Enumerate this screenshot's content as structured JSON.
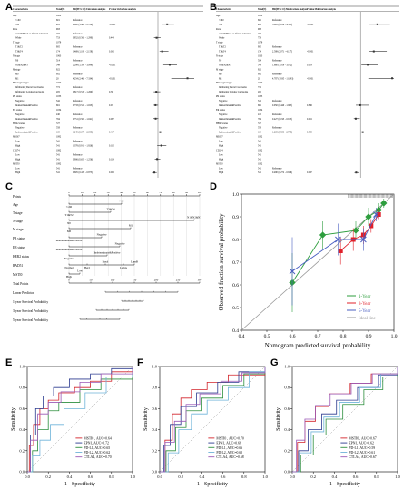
{
  "panels": {
    "A": "A",
    "B": "B",
    "C": "C",
    "D": "D",
    "E": "E",
    "F": "F",
    "G": "G"
  },
  "forest_uni": {
    "headers": [
      "Characteristics",
      "Total(N)",
      "HR(95% CI) Univariate analysis",
      "P value Univariate analysis"
    ],
    "rows": [
      [
        "Age",
        "1082",
        "",
        ""
      ],
      [
        "<=60",
        "601",
        "Reference",
        ""
      ],
      [
        ">60",
        "481",
        "2.020 (1.465 - 2.784)",
        "<0.001"
      ],
      [
        "Race",
        "993",
        "",
        ""
      ],
      [
        "Asian&Black or African American",
        "184",
        "Reference",
        ""
      ],
      [
        "White",
        "753",
        "0.852 (0.563 - 1.290)",
        "0.449"
      ],
      [
        "T stage",
        "1079",
        "",
        ""
      ],
      [
        "T1&T2",
        "905",
        "Reference",
        ""
      ],
      [
        "T3&T4",
        "174",
        "1.469 (1.181 - 2.158)",
        "0.012"
      ],
      [
        "N stage",
        "1063",
        "",
        ""
      ],
      [
        "N0",
        "514",
        "Reference",
        ""
      ],
      [
        "N1&N2&N3",
        "549",
        "2.299 (1.591 - 3.099)",
        "<0.001"
      ],
      [
        "M stage",
        "922",
        "",
        ""
      ],
      [
        "M0",
        "902",
        "Reference",
        ""
      ],
      [
        "M1",
        "20",
        "4.254 (2.468 - 7.334)",
        "<0.001"
      ],
      [
        "Histological type",
        "1077",
        "",
        ""
      ],
      [
        "Infiltrating Ductal Carcinoma",
        "772",
        "Reference",
        ""
      ],
      [
        "Infiltrating Lobular Carcinoma",
        "205",
        "0.817 (0.530 - 1.260)",
        "0.36"
      ],
      [
        "PR status",
        "1033",
        "",
        ""
      ],
      [
        "Negative",
        "342",
        "Reference",
        ""
      ],
      [
        "Indeterminate&Positive",
        "691",
        "0.733 (0.525 - 1.023)",
        "0.07"
      ],
      [
        "ER status",
        "1034",
        "",
        ""
      ],
      [
        "Negative",
        "240",
        "Reference",
        ""
      ],
      [
        "Indeterminate&Positive",
        "794",
        "0.751 (0.503 - 1.041)",
        "0.087"
      ],
      [
        "HER2 status",
        "727",
        "",
        ""
      ],
      [
        "Negative",
        "558",
        "Reference",
        ""
      ],
      [
        "Indeterminate&Positive",
        "169",
        "1.249 (0.672 - 2.088)",
        "0.467"
      ],
      [
        "MKI67",
        "1082",
        "",
        ""
      ],
      [
        "Low",
        "541",
        "Reference",
        ""
      ],
      [
        "High",
        "541",
        "1.378 (0.919 - 1.926)",
        "0.115"
      ],
      [
        "CD274",
        "1082",
        "",
        ""
      ],
      [
        "Low",
        "541",
        "Reference",
        ""
      ],
      [
        "High",
        "541",
        "0.906 (0.654 - 1.256)",
        "0.119"
      ],
      [
        "MSTI0",
        "1082",
        "",
        ""
      ],
      [
        "Low",
        "541",
        "Reference",
        ""
      ],
      [
        "High",
        "541",
        "0.605 (0.439 - 0.875)",
        "0.006"
      ]
    ],
    "axis_ticks": [
      "0",
      "1",
      "2",
      "3",
      "4",
      "5"
    ],
    "ci": [
      null,
      null,
      [
        1.465,
        2.784,
        2.02
      ],
      null,
      null,
      [
        0.563,
        1.29,
        0.852
      ],
      null,
      null,
      [
        1.181,
        2.158,
        1.469
      ],
      null,
      null,
      [
        1.591,
        3.099,
        2.299
      ],
      null,
      null,
      [
        2.468,
        7.334,
        4.254
      ],
      null,
      null,
      [
        0.53,
        1.26,
        0.817
      ],
      null,
      null,
      [
        0.525,
        1.023,
        0.733
      ],
      null,
      null,
      [
        0.503,
        1.041,
        0.751
      ],
      null,
      null,
      [
        0.672,
        2.088,
        1.249
      ],
      null,
      null,
      [
        0.919,
        1.926,
        1.378
      ],
      null,
      null,
      [
        0.654,
        1.256,
        0.906
      ],
      null,
      null,
      [
        0.439,
        0.875,
        0.605
      ]
    ]
  },
  "forest_multi": {
    "headers": [
      "Characteristics",
      "Total(N)",
      "HR(95% CI) Multivariate analysis",
      "P value Multivariate analysis"
    ],
    "rows": [
      [
        "Age",
        "1082",
        "",
        ""
      ],
      [
        "<=60",
        "601",
        "Reference",
        ""
      ],
      [
        ">60",
        "481",
        "3.022 (2.036 - 4.523)",
        "<0.001"
      ],
      [
        "Race",
        "993",
        "",
        ""
      ],
      [
        "Asian&Black or African American",
        "184",
        "",
        ""
      ],
      [
        "White",
        "753",
        "",
        ""
      ],
      [
        "T stage",
        "1079",
        "",
        ""
      ],
      [
        "T1&T2",
        "905",
        "Reference",
        ""
      ],
      [
        "T3&T4",
        "174",
        "2.589 (2.071 - 4.137)",
        "<0.001"
      ],
      [
        "N stage",
        "1063",
        "",
        ""
      ],
      [
        "N0",
        "514",
        "Reference",
        ""
      ],
      [
        "N1&N2&N3",
        "549",
        "1.860 (1.109 - 3.072)",
        "0.019"
      ],
      [
        "M stage",
        "922",
        "",
        ""
      ],
      [
        "M0",
        "902",
        "Reference",
        ""
      ],
      [
        "M1",
        "20",
        "4.787 (1.935 - 11.893)",
        "<0.001"
      ],
      [
        "Histological type",
        "1077",
        "",
        ""
      ],
      [
        "Infiltrating Ductal Carcinoma",
        "772",
        "",
        ""
      ],
      [
        "Infiltrating Lobular Carcinoma",
        "205",
        "",
        ""
      ],
      [
        "PR status",
        "1033",
        "",
        ""
      ],
      [
        "Negative",
        "342",
        "Reference",
        ""
      ],
      [
        "Indeterminate&Positive",
        "691",
        "0.950 (0.440 - 1.965)",
        "0.896"
      ],
      [
        "ER status",
        "1034",
        "",
        ""
      ],
      [
        "Negative",
        "240",
        "Reference",
        ""
      ],
      [
        "Indeterminate&Positive",
        "794",
        "0.427 (0.193 - 0.913)",
        "0.031"
      ],
      [
        "HER2 status",
        "727",
        "",
        ""
      ],
      [
        "Negative",
        "558",
        "Reference",
        ""
      ],
      [
        "Indeterminate&Positive",
        "169",
        "1.265 (0.583 - 2.755)",
        "0.528"
      ],
      [
        "MKI67",
        "1082",
        "",
        ""
      ],
      [
        "Low",
        "541",
        "",
        ""
      ],
      [
        "High",
        "541",
        "",
        ""
      ],
      [
        "CD274",
        "1082",
        "",
        ""
      ],
      [
        "Low",
        "541",
        "",
        ""
      ],
      [
        "High",
        "541",
        "",
        ""
      ],
      [
        "MSTI0",
        "1082",
        "",
        ""
      ],
      [
        "Low",
        "541",
        "Reference",
        ""
      ],
      [
        "High",
        "541",
        "0.480 (0.272 - 0.846)",
        "0.047"
      ]
    ],
    "axis_ticks": [
      "0",
      "2",
      "4"
    ],
    "ci": [
      null,
      null,
      [
        2.036,
        4.523,
        3.022
      ],
      null,
      null,
      null,
      null,
      null,
      [
        2.071,
        4.137,
        2.589
      ],
      null,
      null,
      [
        1.109,
        3.072,
        1.86
      ],
      null,
      null,
      [
        1.935,
        11.893,
        4.787
      ],
      null,
      null,
      null,
      null,
      null,
      [
        0.44,
        1.965,
        0.95
      ],
      null,
      null,
      [
        0.193,
        0.913,
        0.427
      ],
      null,
      null,
      [
        0.583,
        2.755,
        1.265
      ],
      null,
      null,
      null,
      null,
      null,
      null,
      null,
      null,
      [
        0.272,
        0.846,
        0.48
      ]
    ]
  },
  "nomogram": {
    "rows": [
      "Points",
      "Age",
      "T stage",
      "N stage",
      "M stage",
      "PR status",
      "ER status",
      "HER2 status",
      "RAD51",
      "MSTI0",
      "Total Points",
      "Linear Predictor",
      "1-year Survival Probability",
      "3-year Survival Probability",
      "5-year Survival Probability"
    ],
    "points_ticks": [
      "0",
      "10",
      "20",
      "30",
      "40",
      "50",
      "60",
      "70",
      "80",
      "90",
      "100"
    ],
    "total_ticks": [
      "0",
      "50",
      "100",
      "150",
      "200",
      "250",
      "300"
    ],
    "annotations": {
      "age": ">60",
      "age2": "<=60",
      "t1": "T3&T4",
      "t2": "T1&T2",
      "n1": "N1&N2&N3",
      "n2": "N0",
      "m1": "M1",
      "m2": "M0",
      "pr1": "Negative",
      "pr2": "Indeterminate&Positive",
      "er1": "Negative",
      "er2": "Indeterminate&Positive",
      "her1": "Indeterminate&Positive",
      "her2": "Negative",
      "rad_a": "Basal",
      "rad_b": "Normal",
      "rad_c": "LumB",
      "rad_d": "LumA",
      "rad_e": "Her2",
      "ms1": "Low",
      "ms2": "High"
    }
  },
  "calibration": {
    "xlabel": "Nomogram predicted survival probability",
    "ylabel": "Observed fraction survival probability",
    "xticks": [
      "0.4",
      "0.5",
      "0.6",
      "0.7",
      "0.8",
      "0.9",
      "1.0"
    ],
    "yticks": [
      "0.4",
      "0.5",
      "0.6",
      "0.7",
      "0.8",
      "0.9",
      "1.0"
    ],
    "legend": [
      "1-Year",
      "3-Year",
      "5-Year",
      "Ideal line"
    ],
    "colors": {
      "y1": "#2e9e3e",
      "y3": "#e0202a",
      "y5": "#4a5fc1",
      "ideal": "#999999"
    }
  },
  "chart_data": [
    {
      "type": "line",
      "title": "",
      "xlabel": "Nomogram predicted survival probability",
      "ylabel": "Observed fraction survival probability",
      "xlim": [
        0.4,
        1.0
      ],
      "ylim": [
        0.4,
        1.0
      ],
      "legend_position": "bottom-right",
      "series": [
        {
          "name": "1-Year",
          "x": [
            0.6,
            0.72,
            0.85,
            0.9,
            0.94,
            0.96
          ],
          "y": [
            0.61,
            0.82,
            0.84,
            0.9,
            0.93,
            0.96
          ]
        },
        {
          "name": "3-Year",
          "x": [
            0.79,
            0.84,
            0.88,
            0.91,
            0.94
          ],
          "y": [
            0.75,
            0.8,
            0.82,
            0.86,
            0.91
          ]
        },
        {
          "name": "5-Year",
          "x": [
            0.6,
            0.78,
            0.88,
            0.93
          ],
          "y": [
            0.66,
            0.8,
            0.8,
            0.91
          ]
        }
      ]
    },
    {
      "type": "line",
      "title": "",
      "xlabel": "1 - Specificity",
      "ylabel": "Sensitivity",
      "xlim": [
        0,
        1
      ],
      "ylim": [
        0,
        1
      ],
      "series": [
        {
          "name": "MSTI0 , AUC=0.64"
        },
        {
          "name": "EPN1, AUC=0.72"
        },
        {
          "name": "PD-L1, AUC=0.65"
        },
        {
          "name": "PD-L2, AUC=0.62"
        },
        {
          "name": "CTLA4, AUC=0.70"
        }
      ]
    },
    {
      "type": "line",
      "title": "",
      "xlabel": "1 - Specificity",
      "ylabel": "Sensitivity",
      "xlim": [
        0,
        1
      ],
      "ylim": [
        0,
        1
      ],
      "series": [
        {
          "name": "MSTI0 , AUC=0.70"
        },
        {
          "name": "EPN1, AUC=0.68"
        },
        {
          "name": "PD-L1, AUC=0.66"
        },
        {
          "name": "PD-L2, AUC=0.65"
        },
        {
          "name": "CTLA4, AUC=0.68"
        }
      ]
    },
    {
      "type": "line",
      "title": "",
      "xlabel": "1 - Specificity",
      "ylabel": "Sensitivity",
      "xlim": [
        0,
        1
      ],
      "ylim": [
        0,
        1
      ],
      "series": [
        {
          "name": "MSTI0 , AUC=0.67"
        },
        {
          "name": "EPN1, AUC=0.62"
        },
        {
          "name": "PD-L1, AUC=0.59"
        },
        {
          "name": "PD-L2, AUC=0.61"
        },
        {
          "name": "CTLA4, AUC=0.67"
        }
      ]
    }
  ],
  "roc": {
    "xlabel": "1 - Specificity",
    "ylabel": "Sensitivity",
    "ticks": [
      "0.0",
      "0.2",
      "0.4",
      "0.6",
      "0.8",
      "1.0"
    ],
    "colors": [
      "#d2232a",
      "#2b3a8f",
      "#2d8f3e",
      "#6fb3d9",
      "#9b59b6"
    ],
    "E": [
      "MSTI0 , AUC=0.64",
      "EPN1, AUC=0.72",
      "PD-L1, AUC=0.65",
      "PD-L2, AUC=0.62",
      "CTLA4, AUC=0.70"
    ],
    "F": [
      "MSTI0 , AUC=0.70",
      "EPN1, AUC=0.68",
      "PD-L1, AUC=0.66",
      "PD-L2, AUC=0.65",
      "CTLA4, AUC=0.68"
    ],
    "G": [
      "MSTI0 , AUC=0.67",
      "EPN1, AUC=0.62",
      "PD-L1, AUC=0.59",
      "PD-L2, AUC=0.61",
      "CTLA4, AUC=0.67"
    ]
  }
}
